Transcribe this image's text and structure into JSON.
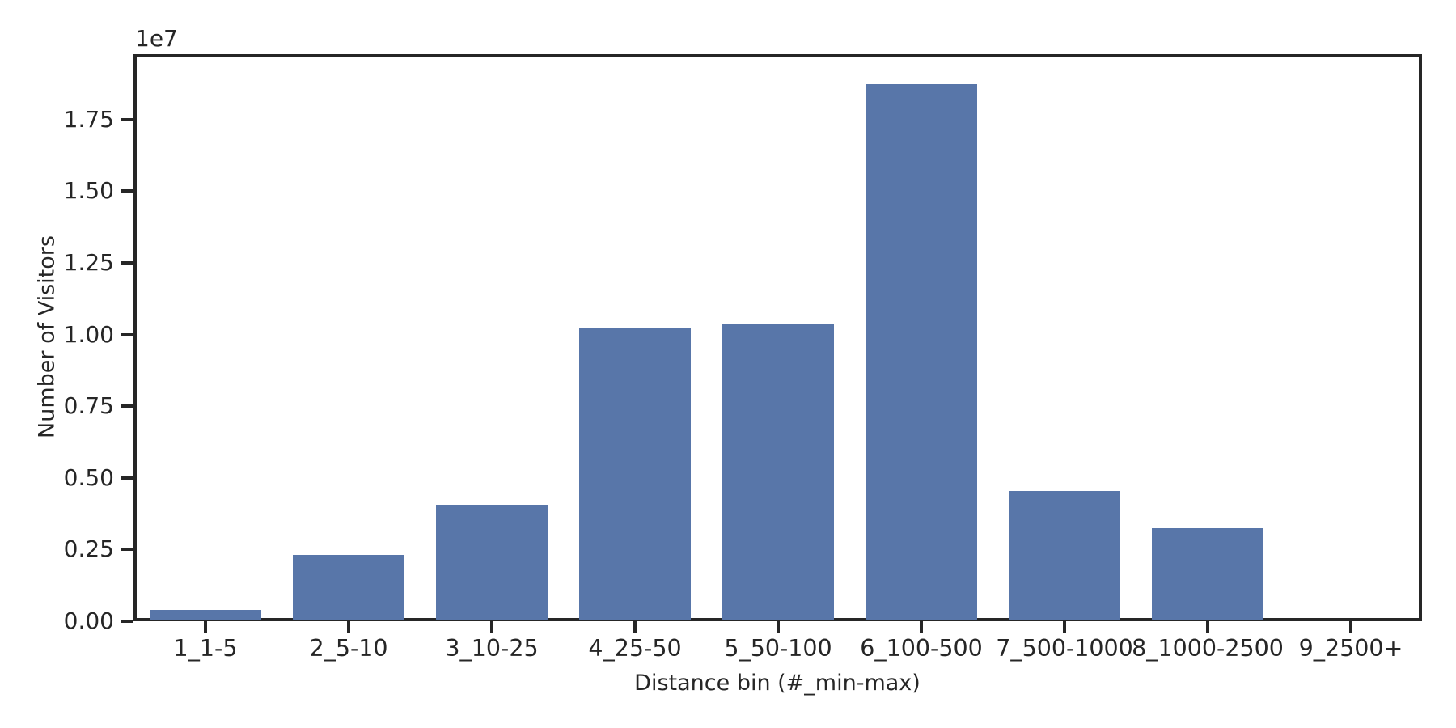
{
  "chart_data": {
    "type": "bar",
    "title": "",
    "xlabel": "Distance bin (#_min-max)",
    "ylabel": "Number of Visitors",
    "y_offset_label": "1e7",
    "categories": [
      "1_1-5",
      "2_5-10",
      "3_10-25",
      "4_25-50",
      "5_50-100",
      "6_100-500",
      "7_500-1000",
      "8_1000-2500",
      "9_2500+"
    ],
    "values": [
      370000,
      2290000,
      4040000,
      10200000,
      10340000,
      18710000,
      4510000,
      3220000,
      10000
    ],
    "y_tick_labels": [
      "0.00",
      "0.25",
      "0.50",
      "0.75",
      "1.00",
      "1.25",
      "1.50",
      "1.75"
    ],
    "y_tick_values": [
      0,
      2500000,
      5000000,
      7500000,
      10000000,
      12500000,
      15000000,
      17500000
    ],
    "ylim": [
      0,
      19780000
    ],
    "grid": false,
    "legend": false,
    "bar_color": "#5876A9",
    "axis_color": "#262626",
    "background_color": "#FFFFFF"
  }
}
